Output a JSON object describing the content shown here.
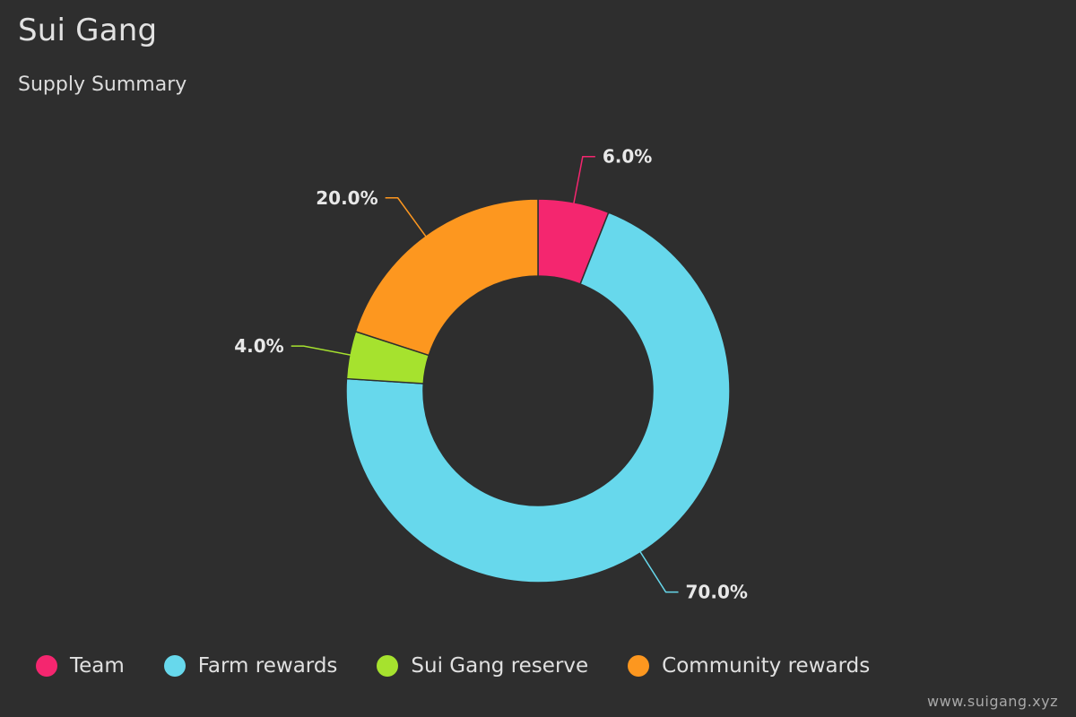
{
  "header": {
    "title": "Sui Gang",
    "subtitle": "Supply Summary"
  },
  "watermark": "www.suigang.xyz",
  "chart_data": {
    "type": "pie",
    "variant": "donut",
    "start_angle_deg": 0,
    "direction": "clockwise",
    "legend_position": "bottom-left",
    "series": [
      {
        "name": "Team",
        "value": 6.0,
        "label": "6.0%",
        "color": "#f4266f"
      },
      {
        "name": "Farm rewards",
        "value": 70.0,
        "label": "70.0%",
        "color": "#67d8ec"
      },
      {
        "name": "Sui Gang reserve",
        "value": 4.0,
        "label": "4.0%",
        "color": "#a6e22e"
      },
      {
        "name": "Community rewards",
        "value": 20.0,
        "label": "20.0%",
        "color": "#fd971f"
      }
    ]
  }
}
